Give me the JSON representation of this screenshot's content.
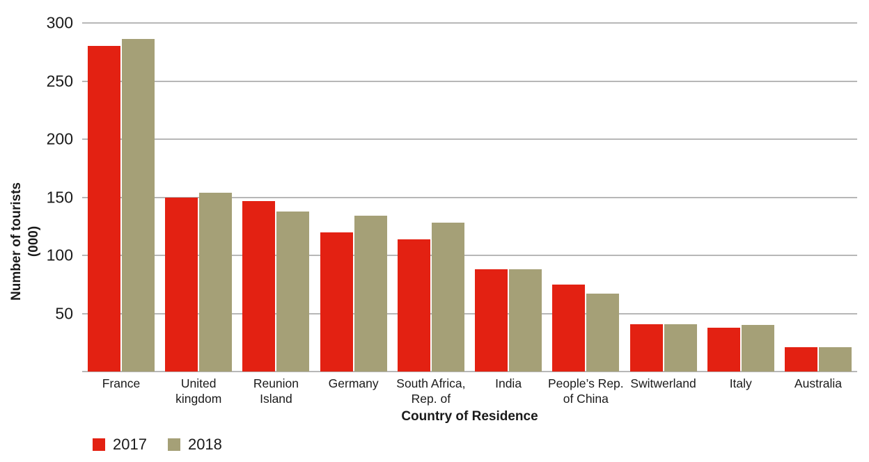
{
  "chart_data": {
    "type": "bar",
    "title": "",
    "xlabel": "Country of Residence",
    "ylabel": "Number of tourists (000)",
    "ylabel_lines": [
      "Number of tourists",
      "(000)"
    ],
    "ylim": [
      0,
      300
    ],
    "yticks": [
      300,
      250,
      200,
      150,
      100,
      50
    ],
    "gridline_values": [
      0,
      50,
      100,
      150,
      200,
      250,
      300
    ],
    "grid": true,
    "legend_position": "bottom-left",
    "categories": [
      "France",
      "United kingdom",
      "Reunion Island",
      "Germany",
      "South Africa, Rep. of",
      "India",
      "People’s Rep. of China",
      "Switwerland",
      "Italy",
      "Australia"
    ],
    "category_label_lines": [
      [
        "France"
      ],
      [
        "United",
        "kingdom"
      ],
      [
        "Reunion",
        "Island"
      ],
      [
        "Germany"
      ],
      [
        "South Africa,",
        "Rep. of"
      ],
      [
        "India"
      ],
      [
        "People’s Rep.",
        "of China"
      ],
      [
        "Switwerland"
      ],
      [
        "Italy"
      ],
      [
        "Australia"
      ]
    ],
    "series": [
      {
        "name": "2017",
        "color": "#e32112",
        "values": [
          280,
          150,
          147,
          120,
          114,
          88,
          75,
          41,
          38,
          21
        ]
      },
      {
        "name": "2018",
        "color": "#a5a077",
        "values": [
          286,
          154,
          138,
          134,
          128,
          88,
          67,
          41,
          40,
          21
        ]
      }
    ],
    "colors": {
      "gridline": "#b7b7b7",
      "text": "#1a1a1a",
      "background": "#ffffff"
    }
  }
}
